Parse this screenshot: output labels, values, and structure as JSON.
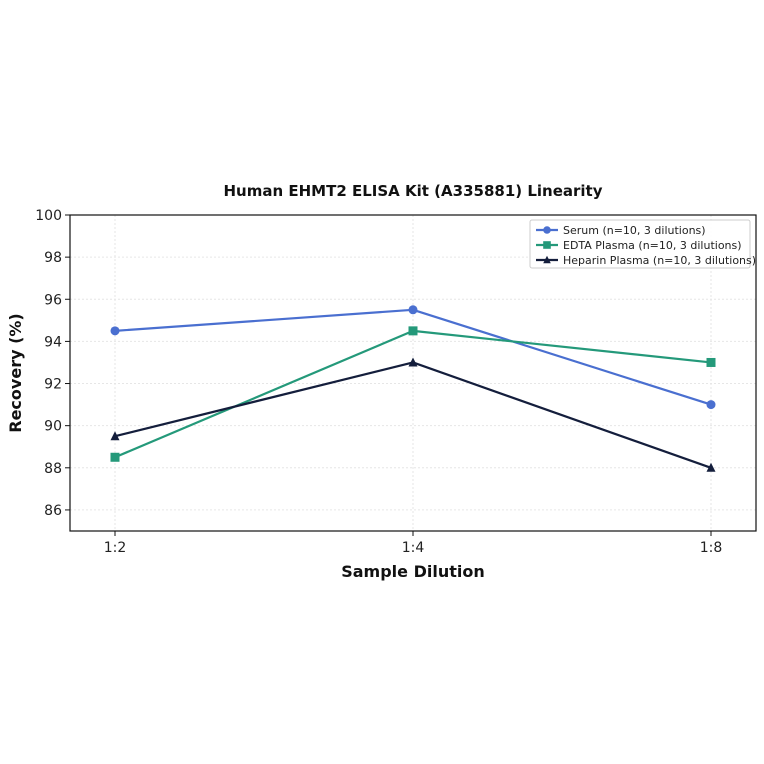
{
  "chart_data": {
    "type": "line",
    "title": "Human EHMT2 ELISA Kit (A335881) Linearity",
    "xlabel": "Sample Dilution",
    "ylabel": "Recovery (%)",
    "categories": [
      "1:2",
      "1:4",
      "1:8"
    ],
    "ylim": [
      85,
      100
    ],
    "yticks": [
      86,
      88,
      90,
      92,
      94,
      96,
      98,
      100
    ],
    "grid": true,
    "legend_position": "top-right",
    "series": [
      {
        "name": "Serum (n=10, 3 dilutions)",
        "values": [
          94.5,
          95.5,
          91.0
        ],
        "color": "#4a6fd0",
        "marker": "circle"
      },
      {
        "name": "EDTA Plasma (n=10, 3 dilutions)",
        "values": [
          88.5,
          94.5,
          93.0
        ],
        "color": "#24997a",
        "marker": "square"
      },
      {
        "name": "Heparin Plasma (n=10, 3 dilutions)",
        "values": [
          89.5,
          93.0,
          88.0
        ],
        "color": "#141e3c",
        "marker": "triangle"
      }
    ]
  }
}
